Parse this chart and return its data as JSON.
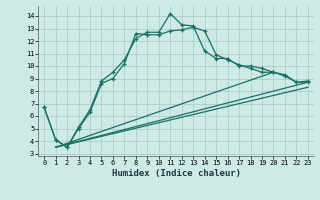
{
  "xlabel": "Humidex (Indice chaleur)",
  "bg_color": "#ceeae6",
  "grid_color": "#aacfca",
  "line_color": "#1a7060",
  "xlim": [
    -0.5,
    23.5
  ],
  "ylim": [
    2.8,
    14.8
  ],
  "xticks": [
    0,
    1,
    2,
    3,
    4,
    5,
    6,
    7,
    8,
    9,
    10,
    11,
    12,
    13,
    14,
    15,
    16,
    17,
    18,
    19,
    20,
    21,
    22,
    23
  ],
  "yticks": [
    3,
    4,
    5,
    6,
    7,
    8,
    9,
    10,
    11,
    12,
    13,
    14
  ],
  "line1_x": [
    0,
    1,
    2,
    3,
    4,
    5,
    6,
    7,
    8,
    9,
    10,
    11,
    12,
    13,
    14,
    15,
    16,
    17,
    18,
    19,
    20,
    21,
    22,
    23
  ],
  "line1_y": [
    6.7,
    4.1,
    3.5,
    5.1,
    6.5,
    8.8,
    9.5,
    10.5,
    12.2,
    12.7,
    12.7,
    14.2,
    13.3,
    13.2,
    11.2,
    10.6,
    10.6,
    10.0,
    10.0,
    9.8,
    9.5,
    9.2,
    8.7,
    8.7
  ],
  "line2_x": [
    0,
    1,
    2,
    3,
    4,
    5,
    6,
    7,
    8,
    9,
    10,
    11,
    12,
    13,
    14,
    15,
    16,
    17,
    18,
    19,
    20,
    21,
    22,
    23
  ],
  "line2_y": [
    6.7,
    4.1,
    3.5,
    5.0,
    6.3,
    8.6,
    9.0,
    10.2,
    12.6,
    12.5,
    12.5,
    12.8,
    12.9,
    13.1,
    12.8,
    10.9,
    10.5,
    10.1,
    9.8,
    9.5,
    9.5,
    9.3,
    8.7,
    8.8
  ],
  "line3_x": [
    1,
    20
  ],
  "line3_y": [
    3.5,
    9.5
  ],
  "line4_x": [
    1,
    23
  ],
  "line4_y": [
    3.5,
    8.7
  ],
  "line5_x": [
    1,
    23
  ],
  "line5_y": [
    3.5,
    8.3
  ]
}
